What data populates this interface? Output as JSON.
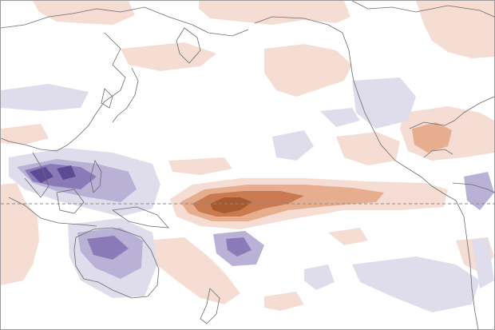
{
  "map": {
    "type": "anomaly-map",
    "region": "Pacific basin",
    "features": [
      "coastlines",
      "equator-line"
    ],
    "colors": {
      "background": "#ffffff",
      "frame": "#9a9a9a",
      "coastline": "#6b6b6b",
      "equator": "#8a8a8a",
      "positive_light": "#f5ddd3",
      "positive_mid": "#e6ad8f",
      "positive_strong": "#c97a50",
      "positive_core": "#a85a2e",
      "negative_light": "#dfddec",
      "negative_mid": "#b9b1d6",
      "negative_strong": "#8b7ab8",
      "negative_core": "#5e4a94"
    }
  }
}
